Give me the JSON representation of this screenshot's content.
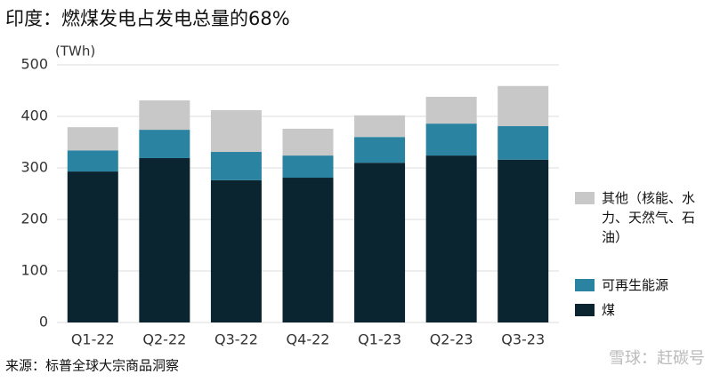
{
  "chart_data": {
    "type": "stacked-bar",
    "title": "印度：燃煤发电占发电总量的68%",
    "y_label": "(TWh)",
    "source": "来源：标普全球大宗商品洞察",
    "watermark": "雪球：赶碳号",
    "categories": [
      "Q1-22",
      "Q2-22",
      "Q3-22",
      "Q4-22",
      "Q1-23",
      "Q2-23",
      "Q3-23"
    ],
    "series": [
      {
        "name": "煤",
        "color": "#0b2530",
        "values": [
          293,
          319,
          276,
          281,
          310,
          324,
          316
        ]
      },
      {
        "name": "可再生能源",
        "color": "#2a83a0",
        "values": [
          41,
          55,
          55,
          43,
          50,
          62,
          65
        ]
      },
      {
        "name": "其他（核能、水力、天然气、石油）",
        "color": "#c8c8c8",
        "values": [
          45,
          57,
          81,
          52,
          42,
          52,
          78
        ]
      }
    ],
    "ylim": [
      0,
      500
    ],
    "yticks": [
      0,
      100,
      200,
      300,
      400,
      500
    ],
    "grid": true
  }
}
